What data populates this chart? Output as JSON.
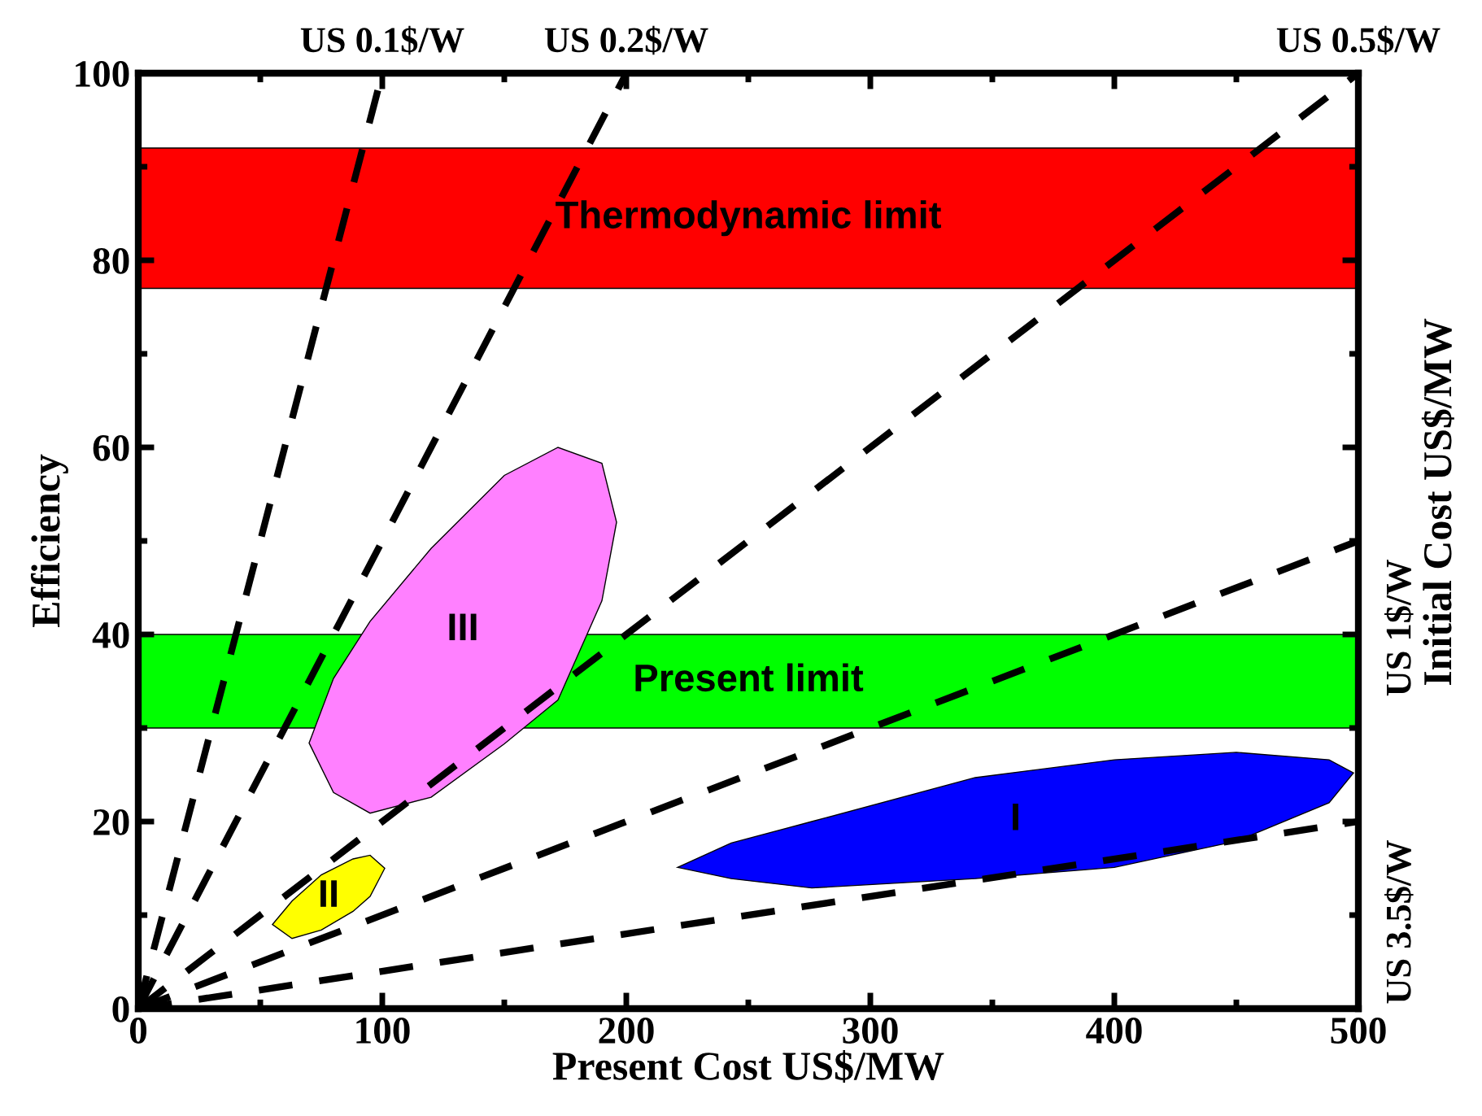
{
  "chart_data": {
    "type": "line",
    "xlabel": "Present Cost US$/MW",
    "ylabel": "Efficiency",
    "xlim": [
      0,
      500
    ],
    "xticks": [
      0,
      100,
      200,
      300,
      400,
      500
    ],
    "ylim": [
      0,
      100
    ],
    "yticks": [
      0,
      20,
      40,
      60,
      80,
      100
    ],
    "grid": false,
    "legend": false,
    "line_style": "dashed",
    "marker": "none",
    "series": [
      {
        "color": "#000000",
        "x": [
          0,
          100
        ],
        "values": [
          0,
          100
        ]
      },
      {
        "color": "#000000",
        "x": [
          0,
          200
        ],
        "values": [
          0,
          100
        ]
      },
      {
        "color": "#000000",
        "x": [
          0,
          500
        ],
        "values": [
          0,
          100
        ]
      },
      {
        "color": "#000000",
        "x": [
          0,
          500
        ],
        "values": [
          0,
          50
        ]
      },
      {
        "color": "#000000",
        "x": [
          0,
          500
        ],
        "values": [
          0,
          20
        ]
      },
      {
        "name": "I",
        "type": "area",
        "color": "#0000ff",
        "x": [
          221,
          243,
          276,
          343,
          400,
          450,
          488,
          498,
          488,
          450,
          400,
          343,
          276,
          243
        ],
        "values": [
          15.1,
          17.7,
          20,
          24.7,
          26.6,
          27.4,
          26.6,
          25.2,
          22,
          17.9,
          15.1,
          13.9,
          12.9,
          13.9
        ]
      },
      {
        "name": "II",
        "type": "area",
        "color": "#ffff00",
        "x": [
          55,
          63,
          75,
          88,
          95,
          101,
          95,
          88,
          75,
          63
        ],
        "values": [
          9,
          11.5,
          14.3,
          16,
          16.4,
          15,
          12,
          10.4,
          8.4,
          7.5
        ]
      },
      {
        "name": "III",
        "type": "area",
        "color": "#ff80ff",
        "x": [
          70,
          80,
          95,
          120,
          150,
          172,
          190,
          196,
          190,
          172,
          150,
          120,
          95,
          80
        ],
        "values": [
          28.4,
          35.3,
          41.4,
          49.2,
          57,
          60,
          58.3,
          52,
          43.6,
          33,
          28.3,
          22.6,
          20.9,
          23.1
        ]
      }
    ],
    "bands": [
      {
        "axis": "y",
        "from": 77,
        "to": 92,
        "label": "Thermodynamic limit",
        "color": "#ff0000"
      },
      {
        "axis": "y",
        "from": 30,
        "to": 40,
        "label": "Present limit",
        "color": "#00ff00"
      }
    ],
    "annotations": [
      {
        "text": "US 0.1$/W",
        "x": 100,
        "y": 100
      },
      {
        "text": "US 0.2$/W",
        "x": 200,
        "y": 100
      },
      {
        "text": "US 0.5$/W",
        "x": 500,
        "y": 100
      },
      {
        "text": "US 1$/W",
        "x": 500,
        "y": 50
      },
      {
        "text": "US 3.5$/W",
        "x": 500,
        "y": 20
      },
      "Initial Cost US$/MW"
    ]
  }
}
